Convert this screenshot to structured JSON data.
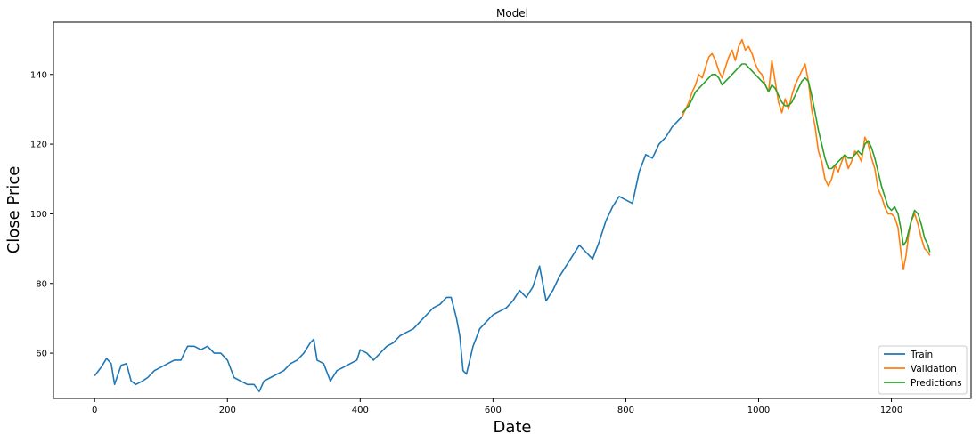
{
  "chart_data": {
    "type": "line",
    "title": "Model",
    "xlabel": "Date",
    "ylabel": "Close Price",
    "xlim": [
      -62,
      1320
    ],
    "ylim": [
      47,
      155
    ],
    "xticks": [
      0,
      200,
      400,
      600,
      800,
      1000,
      1200
    ],
    "yticks": [
      60,
      80,
      100,
      120,
      140
    ],
    "grid": false,
    "legend_position": "lower right",
    "series": [
      {
        "name": "Train",
        "color": "#1f77b4",
        "points": [
          [
            0,
            53.5
          ],
          [
            10,
            56
          ],
          [
            18,
            58.5
          ],
          [
            25,
            57
          ],
          [
            30,
            51
          ],
          [
            40,
            56.5
          ],
          [
            48,
            57
          ],
          [
            55,
            52
          ],
          [
            62,
            51
          ],
          [
            72,
            52
          ],
          [
            80,
            53
          ],
          [
            90,
            55
          ],
          [
            100,
            56
          ],
          [
            110,
            57
          ],
          [
            120,
            58
          ],
          [
            130,
            58
          ],
          [
            140,
            62
          ],
          [
            150,
            62
          ],
          [
            160,
            61
          ],
          [
            170,
            62
          ],
          [
            180,
            60
          ],
          [
            190,
            60
          ],
          [
            200,
            58
          ],
          [
            210,
            53
          ],
          [
            220,
            52
          ],
          [
            230,
            51
          ],
          [
            240,
            51
          ],
          [
            248,
            49
          ],
          [
            255,
            52
          ],
          [
            265,
            53
          ],
          [
            275,
            54
          ],
          [
            285,
            55
          ],
          [
            295,
            57
          ],
          [
            305,
            58
          ],
          [
            315,
            60
          ],
          [
            325,
            63
          ],
          [
            330,
            64
          ],
          [
            335,
            58
          ],
          [
            345,
            57
          ],
          [
            355,
            52
          ],
          [
            365,
            55
          ],
          [
            375,
            56
          ],
          [
            385,
            57
          ],
          [
            395,
            58
          ],
          [
            400,
            61
          ],
          [
            410,
            60
          ],
          [
            420,
            58
          ],
          [
            430,
            60
          ],
          [
            440,
            62
          ],
          [
            450,
            63
          ],
          [
            460,
            65
          ],
          [
            470,
            66
          ],
          [
            480,
            67
          ],
          [
            490,
            69
          ],
          [
            500,
            71
          ],
          [
            510,
            73
          ],
          [
            520,
            74
          ],
          [
            530,
            76
          ],
          [
            537,
            76
          ],
          [
            545,
            70
          ],
          [
            550,
            65
          ],
          [
            555,
            55
          ],
          [
            560,
            54
          ],
          [
            565,
            58
          ],
          [
            570,
            62
          ],
          [
            580,
            67
          ],
          [
            590,
            69
          ],
          [
            600,
            71
          ],
          [
            610,
            72
          ],
          [
            620,
            73
          ],
          [
            630,
            75
          ],
          [
            640,
            78
          ],
          [
            650,
            76
          ],
          [
            660,
            79
          ],
          [
            670,
            85
          ],
          [
            675,
            80
          ],
          [
            680,
            75
          ],
          [
            690,
            78
          ],
          [
            700,
            82
          ],
          [
            710,
            85
          ],
          [
            720,
            88
          ],
          [
            730,
            91
          ],
          [
            740,
            89
          ],
          [
            750,
            87
          ],
          [
            760,
            92
          ],
          [
            770,
            98
          ],
          [
            780,
            102
          ],
          [
            790,
            105
          ],
          [
            800,
            104
          ],
          [
            810,
            103
          ],
          [
            820,
            112
          ],
          [
            830,
            117
          ],
          [
            840,
            116
          ],
          [
            850,
            120
          ],
          [
            860,
            122
          ],
          [
            870,
            125
          ],
          [
            880,
            127
          ],
          [
            885,
            128
          ]
        ]
      },
      {
        "name": "Validation",
        "color": "#ff7f0e",
        "points": [
          [
            885,
            128
          ],
          [
            890,
            130
          ],
          [
            895,
            132
          ],
          [
            900,
            135
          ],
          [
            905,
            137
          ],
          [
            910,
            140
          ],
          [
            915,
            139
          ],
          [
            920,
            142
          ],
          [
            925,
            145
          ],
          [
            930,
            146
          ],
          [
            935,
            144
          ],
          [
            940,
            141
          ],
          [
            945,
            139
          ],
          [
            950,
            142
          ],
          [
            955,
            145
          ],
          [
            960,
            147
          ],
          [
            965,
            144
          ],
          [
            970,
            148
          ],
          [
            975,
            150
          ],
          [
            980,
            147
          ],
          [
            985,
            148
          ],
          [
            990,
            146
          ],
          [
            995,
            143
          ],
          [
            1000,
            141
          ],
          [
            1005,
            140
          ],
          [
            1010,
            137
          ],
          [
            1015,
            135
          ],
          [
            1020,
            144
          ],
          [
            1025,
            138
          ],
          [
            1030,
            132
          ],
          [
            1035,
            129
          ],
          [
            1040,
            133
          ],
          [
            1045,
            130
          ],
          [
            1050,
            134
          ],
          [
            1055,
            137
          ],
          [
            1060,
            139
          ],
          [
            1065,
            141
          ],
          [
            1070,
            143
          ],
          [
            1075,
            138
          ],
          [
            1080,
            130
          ],
          [
            1085,
            125
          ],
          [
            1090,
            118
          ],
          [
            1095,
            115
          ],
          [
            1100,
            110
          ],
          [
            1105,
            108
          ],
          [
            1110,
            110
          ],
          [
            1115,
            114
          ],
          [
            1120,
            112
          ],
          [
            1125,
            115
          ],
          [
            1130,
            117
          ],
          [
            1135,
            113
          ],
          [
            1140,
            115
          ],
          [
            1145,
            118
          ],
          [
            1150,
            117
          ],
          [
            1155,
            115
          ],
          [
            1160,
            122
          ],
          [
            1165,
            120
          ],
          [
            1170,
            116
          ],
          [
            1175,
            113
          ],
          [
            1180,
            107
          ],
          [
            1185,
            105
          ],
          [
            1190,
            102
          ],
          [
            1195,
            100
          ],
          [
            1200,
            100
          ],
          [
            1205,
            99
          ],
          [
            1210,
            96
          ],
          [
            1215,
            88
          ],
          [
            1218,
            84
          ],
          [
            1222,
            88
          ],
          [
            1226,
            94
          ],
          [
            1230,
            98
          ],
          [
            1235,
            100
          ],
          [
            1240,
            97
          ],
          [
            1245,
            93
          ],
          [
            1250,
            90
          ],
          [
            1255,
            89
          ],
          [
            1258,
            88
          ]
        ]
      },
      {
        "name": "Predictions",
        "color": "#2ca02c",
        "points": [
          [
            885,
            129
          ],
          [
            890,
            130
          ],
          [
            895,
            131
          ],
          [
            900,
            133
          ],
          [
            905,
            135
          ],
          [
            910,
            136
          ],
          [
            915,
            137
          ],
          [
            920,
            138
          ],
          [
            925,
            139
          ],
          [
            930,
            140
          ],
          [
            935,
            140
          ],
          [
            940,
            139
          ],
          [
            945,
            137
          ],
          [
            950,
            138
          ],
          [
            955,
            139
          ],
          [
            960,
            140
          ],
          [
            965,
            141
          ],
          [
            970,
            142
          ],
          [
            975,
            143
          ],
          [
            980,
            143
          ],
          [
            985,
            142
          ],
          [
            990,
            141
          ],
          [
            995,
            140
          ],
          [
            1000,
            139
          ],
          [
            1005,
            138
          ],
          [
            1010,
            137
          ],
          [
            1015,
            135
          ],
          [
            1020,
            137
          ],
          [
            1025,
            136
          ],
          [
            1030,
            134
          ],
          [
            1035,
            132
          ],
          [
            1040,
            131
          ],
          [
            1045,
            131
          ],
          [
            1050,
            132
          ],
          [
            1055,
            134
          ],
          [
            1060,
            136
          ],
          [
            1065,
            138
          ],
          [
            1070,
            139
          ],
          [
            1075,
            138
          ],
          [
            1080,
            134
          ],
          [
            1085,
            129
          ],
          [
            1090,
            124
          ],
          [
            1095,
            120
          ],
          [
            1100,
            116
          ],
          [
            1105,
            113
          ],
          [
            1110,
            113
          ],
          [
            1115,
            114
          ],
          [
            1120,
            115
          ],
          [
            1125,
            116
          ],
          [
            1130,
            117
          ],
          [
            1135,
            116
          ],
          [
            1140,
            116
          ],
          [
            1145,
            117
          ],
          [
            1150,
            118
          ],
          [
            1155,
            117
          ],
          [
            1160,
            120
          ],
          [
            1165,
            121
          ],
          [
            1170,
            119
          ],
          [
            1175,
            116
          ],
          [
            1180,
            112
          ],
          [
            1185,
            108
          ],
          [
            1190,
            105
          ],
          [
            1195,
            102
          ],
          [
            1200,
            101
          ],
          [
            1205,
            102
          ],
          [
            1210,
            100
          ],
          [
            1215,
            95
          ],
          [
            1218,
            91
          ],
          [
            1222,
            92
          ],
          [
            1226,
            95
          ],
          [
            1230,
            98
          ],
          [
            1235,
            101
          ],
          [
            1240,
            100
          ],
          [
            1245,
            97
          ],
          [
            1250,
            93
          ],
          [
            1255,
            91
          ],
          [
            1258,
            89
          ]
        ]
      }
    ]
  }
}
